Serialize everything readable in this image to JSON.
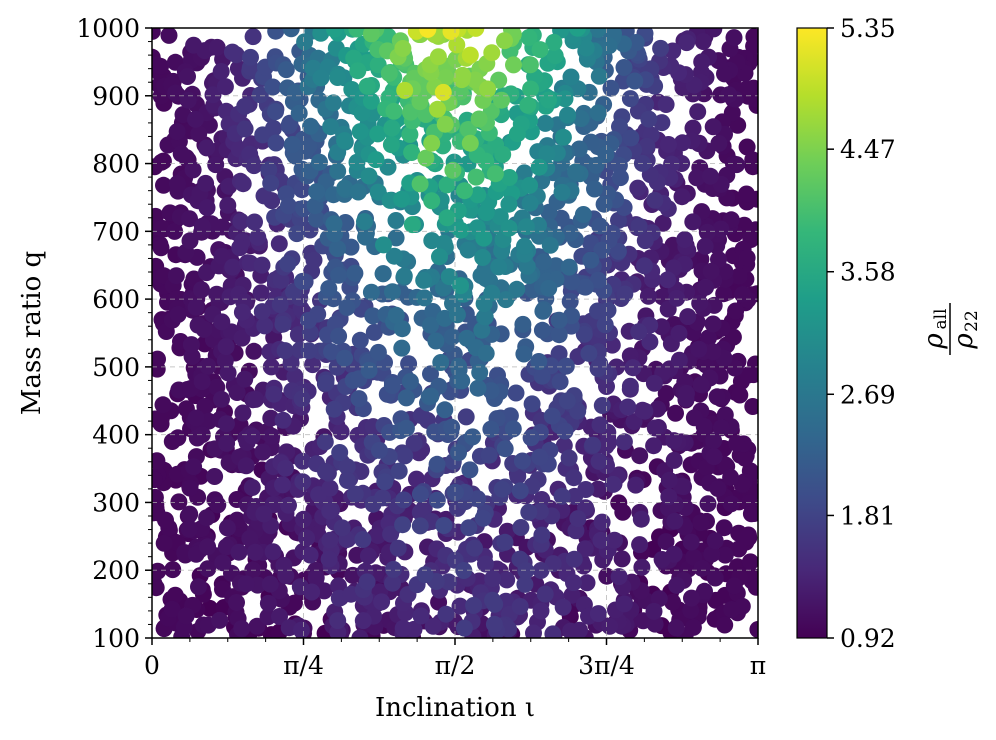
{
  "chart_data": {
    "type": "scatter",
    "title": "",
    "xlabel": "Inclination ι",
    "ylabel": "Mass ratio q",
    "xlim": [
      0,
      3.14159
    ],
    "ylim": [
      100,
      1000
    ],
    "x_ticks": [
      {
        "value": 0,
        "label": "0"
      },
      {
        "value": 0.7854,
        "label": "π/4"
      },
      {
        "value": 1.5708,
        "label": "π/2"
      },
      {
        "value": 2.3562,
        "label": "3π/4"
      },
      {
        "value": 3.14159,
        "label": "π"
      }
    ],
    "y_ticks": [
      100,
      200,
      300,
      400,
      500,
      600,
      700,
      800,
      900,
      1000
    ],
    "grid": true,
    "colorbar": {
      "label_numerator": "ρ",
      "label_numerator_sub": "all",
      "label_denominator": "ρ",
      "label_denominator_sub": "22",
      "range": [
        0.92,
        5.35
      ],
      "ticks": [
        "0.92",
        "1.81",
        "2.69",
        "3.58",
        "4.47",
        "5.35"
      ],
      "colormap": "viridis",
      "colors": [
        "#440154",
        "#482878",
        "#3e4a89",
        "#31688e",
        "#26828e",
        "#1f9e89",
        "#35b779",
        "#6ece58",
        "#b5de2b",
        "#fde725"
      ]
    },
    "highlighted_points": [
      {
        "x": 1.43,
        "y": 998,
        "value": 5.3
      },
      {
        "x": 1.55,
        "y": 995,
        "value": 5.2
      },
      {
        "x": 1.51,
        "y": 905,
        "value": 5.1
      },
      {
        "x": 1.37,
        "y": 995,
        "value": 5.0
      },
      {
        "x": 1.65,
        "y": 960,
        "value": 4.9
      },
      {
        "x": 1.58,
        "y": 975,
        "value": 4.8
      },
      {
        "x": 1.31,
        "y": 908,
        "value": 4.8
      },
      {
        "x": 1.48,
        "y": 880,
        "value": 4.7
      },
      {
        "x": 1.61,
        "y": 930,
        "value": 4.6
      },
      {
        "x": 1.74,
        "y": 910,
        "value": 4.6
      },
      {
        "x": 1.45,
        "y": 830,
        "value": 4.5
      },
      {
        "x": 1.52,
        "y": 858,
        "value": 4.5
      },
      {
        "x": 1.65,
        "y": 830,
        "value": 4.4
      },
      {
        "x": 1.42,
        "y": 808,
        "value": 4.3
      },
      {
        "x": 1.56,
        "y": 790,
        "value": 4.2
      },
      {
        "x": 1.39,
        "y": 770,
        "value": 4.1
      },
      {
        "x": 1.68,
        "y": 780,
        "value": 4.0
      },
      {
        "x": 1.78,
        "y": 785,
        "value": 4.0
      },
      {
        "x": 1.62,
        "y": 760,
        "value": 3.9
      },
      {
        "x": 1.45,
        "y": 745,
        "value": 3.8
      },
      {
        "x": 1.35,
        "y": 710,
        "value": 3.6
      },
      {
        "x": 1.53,
        "y": 720,
        "value": 3.6
      },
      {
        "x": 1.6,
        "y": 620,
        "value": 3.2
      },
      {
        "x": 1.2,
        "y": 680,
        "value": 3.1
      },
      {
        "x": 1.72,
        "y": 690,
        "value": 3.3
      },
      {
        "x": 1.85,
        "y": 740,
        "value": 3.2
      }
    ]
  }
}
